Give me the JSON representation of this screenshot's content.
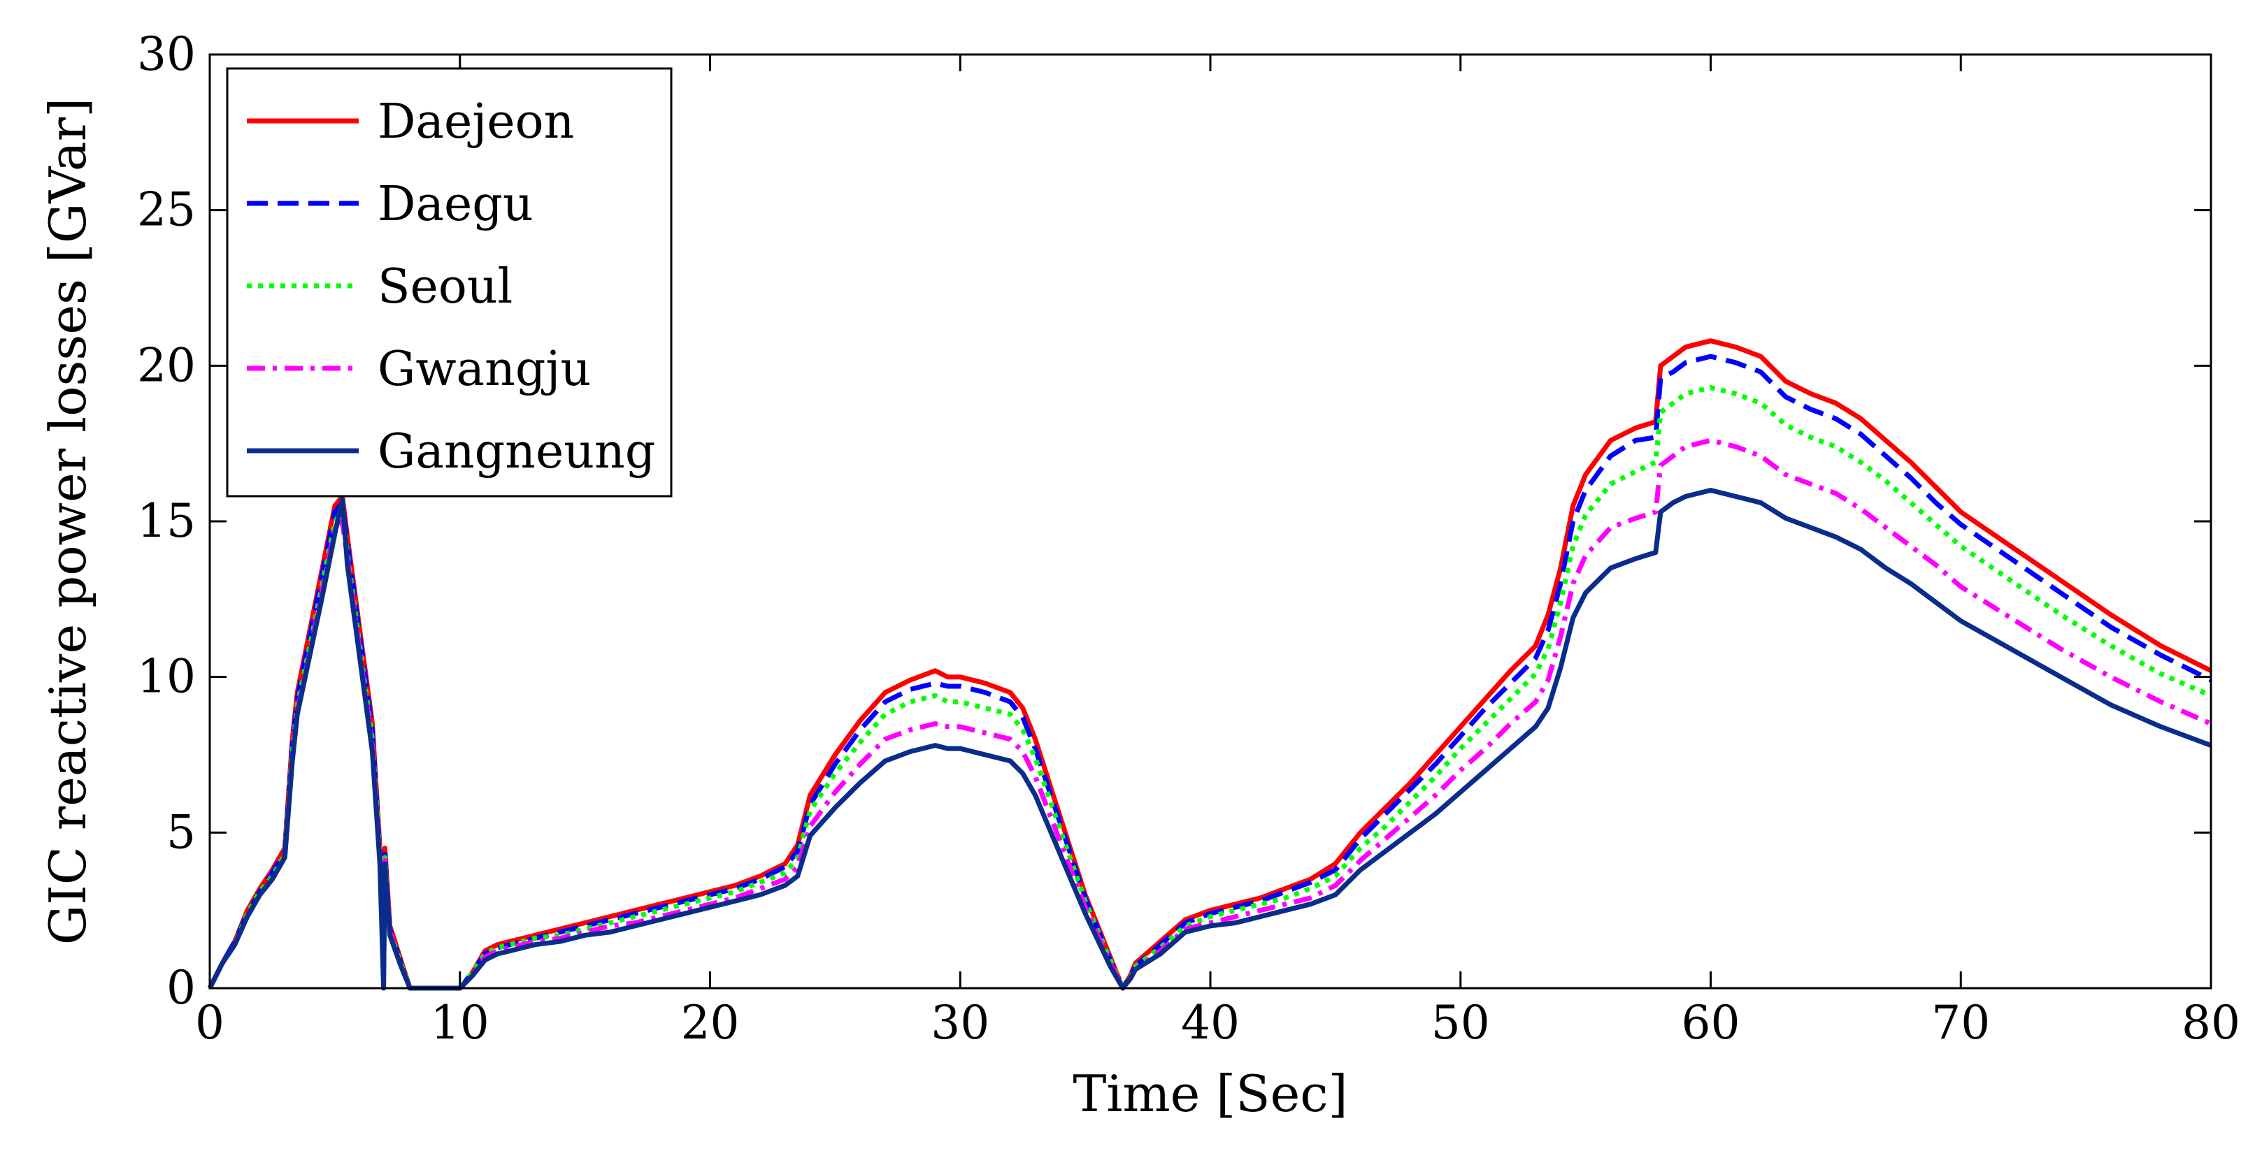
{
  "chart_data": {
    "type": "line",
    "title": "",
    "xlabel": "Time [Sec]",
    "ylabel": "GIC reactive power losses [GVar]",
    "xlim": [
      0,
      80
    ],
    "ylim": [
      0,
      30
    ],
    "xticks": [
      0,
      10,
      20,
      30,
      40,
      50,
      60,
      70,
      80
    ],
    "yticks": [
      0,
      5,
      10,
      15,
      20,
      25,
      30
    ],
    "grid": false,
    "legend_position": "top-left",
    "x": [
      0,
      0.5,
      1,
      1.5,
      2,
      2.5,
      3,
      3.3,
      3.5,
      4,
      4.5,
      5,
      5.3,
      5.5,
      6,
      6.5,
      6.8,
      6.95,
      7.0,
      7.2,
      7.6,
      8.0,
      8.5,
      9,
      9.5,
      10,
      10.5,
      11,
      11.5,
      12,
      13,
      14,
      15,
      16,
      17,
      18,
      19,
      20,
      21,
      22,
      23,
      23.5,
      24,
      25,
      26,
      27,
      28,
      29,
      29.5,
      30,
      31,
      32,
      32.5,
      33,
      34,
      35,
      36,
      36.5,
      36.8,
      37,
      38,
      39,
      40,
      41,
      42,
      43,
      44,
      45,
      46,
      47,
      48,
      49,
      50,
      51,
      52,
      53,
      53.5,
      54,
      54.5,
      55,
      56,
      57,
      57.8,
      58,
      58.5,
      59,
      60,
      61,
      62,
      63,
      64,
      65,
      66,
      67,
      68,
      69,
      70,
      72,
      74,
      76,
      78,
      80
    ],
    "series": [
      {
        "name": "Daejeon",
        "color": "#ff0000",
        "dash": "solid",
        "values": [
          0,
          0.8,
          1.5,
          2.5,
          3.2,
          3.8,
          4.5,
          8.0,
          9.5,
          11.5,
          13.5,
          15.5,
          15.8,
          14.5,
          11.5,
          8.5,
          4.5,
          0.5,
          4.5,
          2.0,
          1.0,
          0,
          0,
          0,
          0,
          0,
          0.5,
          1.2,
          1.4,
          1.5,
          1.7,
          1.9,
          2.1,
          2.3,
          2.5,
          2.7,
          2.9,
          3.1,
          3.3,
          3.6,
          4.0,
          4.6,
          6.2,
          7.5,
          8.6,
          9.5,
          9.9,
          10.2,
          10.0,
          10.0,
          9.8,
          9.5,
          9.0,
          8.0,
          5.5,
          3.0,
          1.0,
          0,
          0.4,
          0.8,
          1.5,
          2.2,
          2.5,
          2.7,
          2.9,
          3.2,
          3.5,
          4.0,
          5.0,
          5.8,
          6.6,
          7.5,
          8.4,
          9.3,
          10.2,
          11.0,
          12.0,
          13.5,
          15.5,
          16.5,
          17.6,
          18.0,
          18.2,
          20.0,
          20.3,
          20.6,
          20.8,
          20.6,
          20.3,
          19.5,
          19.1,
          18.8,
          18.3,
          17.6,
          16.9,
          16.1,
          15.3,
          14.2,
          13.1,
          12.0,
          11.0,
          10.2
        ]
      },
      {
        "name": "Daegu",
        "color": "#0000ff",
        "dash": "dashed",
        "values": [
          0,
          0.8,
          1.5,
          2.4,
          3.1,
          3.7,
          4.4,
          7.8,
          9.3,
          11.3,
          13.3,
          15.3,
          15.6,
          14.3,
          11.3,
          8.3,
          4.3,
          0.4,
          4.3,
          1.9,
          0.9,
          0,
          0,
          0,
          0,
          0,
          0.5,
          1.1,
          1.3,
          1.4,
          1.6,
          1.8,
          2.0,
          2.2,
          2.4,
          2.6,
          2.8,
          3.0,
          3.2,
          3.5,
          3.9,
          4.4,
          5.9,
          7.2,
          8.3,
          9.2,
          9.6,
          9.8,
          9.7,
          9.7,
          9.5,
          9.2,
          8.7,
          7.7,
          5.3,
          2.9,
          0.9,
          0,
          0.4,
          0.7,
          1.4,
          2.1,
          2.4,
          2.6,
          2.8,
          3.1,
          3.4,
          3.8,
          4.8,
          5.6,
          6.4,
          7.2,
          8.1,
          9.0,
          9.8,
          10.6,
          11.5,
          13.0,
          15.0,
          16.0,
          17.1,
          17.6,
          17.7,
          19.6,
          19.8,
          20.1,
          20.3,
          20.1,
          19.8,
          19.0,
          18.6,
          18.3,
          17.8,
          17.1,
          16.4,
          15.6,
          14.9,
          13.8,
          12.7,
          11.6,
          10.7,
          9.9
        ]
      },
      {
        "name": "Seoul",
        "color": "#00ff00",
        "dash": "dotted",
        "values": [
          0,
          0.8,
          1.4,
          2.4,
          3.1,
          3.6,
          4.3,
          7.6,
          9.1,
          11.0,
          13.0,
          15.0,
          15.3,
          14.0,
          11.0,
          8.0,
          4.2,
          0.4,
          4.2,
          1.8,
          0.9,
          0,
          0,
          0,
          0,
          0,
          0.5,
          1.1,
          1.3,
          1.4,
          1.6,
          1.7,
          1.9,
          2.1,
          2.3,
          2.5,
          2.7,
          2.9,
          3.1,
          3.4,
          3.7,
          4.2,
          5.7,
          6.9,
          7.9,
          8.8,
          9.2,
          9.4,
          9.2,
          9.2,
          9.0,
          8.8,
          8.3,
          7.4,
          5.1,
          2.8,
          0.9,
          0,
          0.3,
          0.7,
          1.3,
          2.0,
          2.3,
          2.5,
          2.7,
          2.9,
          3.2,
          3.6,
          4.5,
          5.2,
          6.0,
          6.8,
          7.7,
          8.5,
          9.3,
          10.1,
          10.9,
          12.4,
          14.2,
          15.2,
          16.2,
          16.6,
          16.9,
          18.5,
          18.8,
          19.1,
          19.3,
          19.1,
          18.8,
          18.1,
          17.7,
          17.4,
          16.9,
          16.3,
          15.6,
          14.9,
          14.2,
          13.1,
          12.0,
          11.0,
          10.1,
          9.4
        ]
      },
      {
        "name": "Gwangju",
        "color": "#ff00ff",
        "dash": "dashdot",
        "values": [
          0,
          0.8,
          1.4,
          2.3,
          3.0,
          3.5,
          4.2,
          7.4,
          8.9,
          10.8,
          12.8,
          14.8,
          15.0,
          13.8,
          10.8,
          7.8,
          4.1,
          0.4,
          4.1,
          1.8,
          0.8,
          0,
          0,
          0,
          0,
          0,
          0.4,
          1.0,
          1.2,
          1.3,
          1.5,
          1.6,
          1.8,
          2.0,
          2.1,
          2.3,
          2.5,
          2.7,
          2.9,
          3.2,
          3.5,
          3.9,
          5.2,
          6.3,
          7.2,
          8.0,
          8.3,
          8.5,
          8.4,
          8.4,
          8.2,
          8.0,
          7.6,
          6.8,
          4.7,
          2.6,
          0.8,
          0,
          0.3,
          0.6,
          1.2,
          1.9,
          2.1,
          2.3,
          2.5,
          2.7,
          2.9,
          3.3,
          4.1,
          4.8,
          5.5,
          6.2,
          7.0,
          7.7,
          8.5,
          9.2,
          9.9,
          11.3,
          13.0,
          13.9,
          14.8,
          15.1,
          15.3,
          16.8,
          17.1,
          17.4,
          17.6,
          17.4,
          17.1,
          16.5,
          16.2,
          15.9,
          15.4,
          14.8,
          14.2,
          13.6,
          12.9,
          11.9,
          10.9,
          10.0,
          9.2,
          8.5
        ]
      },
      {
        "name": "Gangneung",
        "color": "#0a2d8c",
        "dash": "solid",
        "values": [
          0,
          0.8,
          1.4,
          2.3,
          3.0,
          3.5,
          4.2,
          7.3,
          8.8,
          10.7,
          12.6,
          14.6,
          15.7,
          13.6,
          10.6,
          7.6,
          4.0,
          0,
          4.0,
          1.7,
          0.8,
          0,
          0,
          0,
          0,
          0,
          0.4,
          0.9,
          1.1,
          1.2,
          1.4,
          1.5,
          1.7,
          1.8,
          2.0,
          2.2,
          2.4,
          2.6,
          2.8,
          3.0,
          3.3,
          3.6,
          4.9,
          5.8,
          6.6,
          7.3,
          7.6,
          7.8,
          7.7,
          7.7,
          7.5,
          7.3,
          6.9,
          6.2,
          4.3,
          2.4,
          0.7,
          0,
          0.3,
          0.6,
          1.1,
          1.8,
          2.0,
          2.1,
          2.3,
          2.5,
          2.7,
          3.0,
          3.8,
          4.4,
          5.0,
          5.6,
          6.3,
          7.0,
          7.7,
          8.4,
          9.0,
          10.3,
          11.9,
          12.7,
          13.5,
          13.8,
          14.0,
          15.3,
          15.6,
          15.8,
          16.0,
          15.8,
          15.6,
          15.1,
          14.8,
          14.5,
          14.1,
          13.5,
          13.0,
          12.4,
          11.8,
          10.9,
          10.0,
          9.1,
          8.4,
          7.8
        ]
      }
    ]
  }
}
